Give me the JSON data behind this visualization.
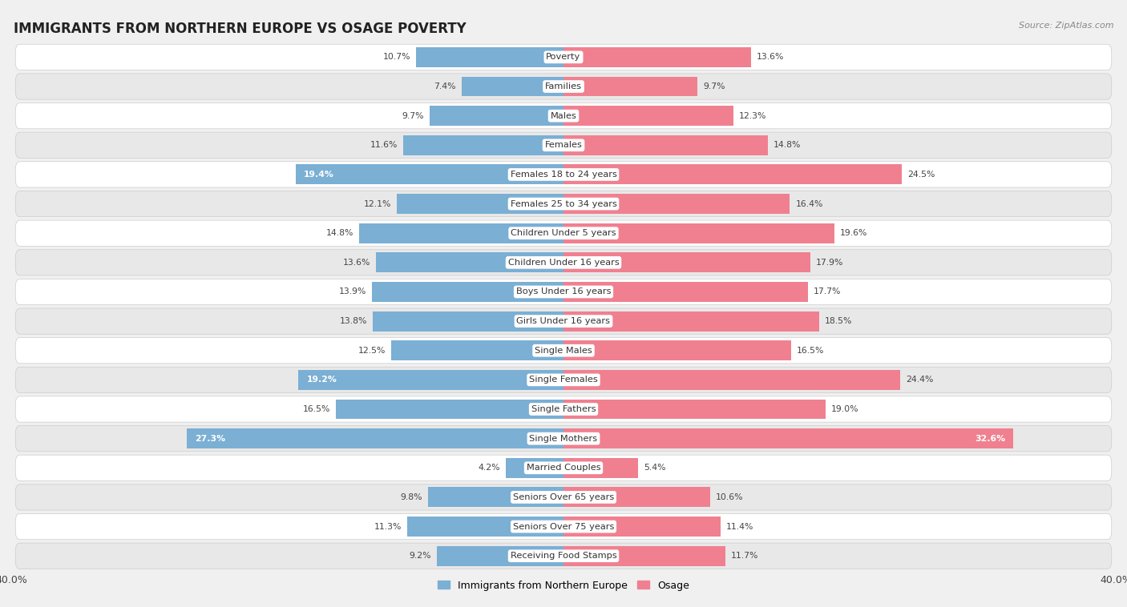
{
  "title": "IMMIGRANTS FROM NORTHERN EUROPE VS OSAGE POVERTY",
  "source": "Source: ZipAtlas.com",
  "categories": [
    "Poverty",
    "Families",
    "Males",
    "Females",
    "Females 18 to 24 years",
    "Females 25 to 34 years",
    "Children Under 5 years",
    "Children Under 16 years",
    "Boys Under 16 years",
    "Girls Under 16 years",
    "Single Males",
    "Single Females",
    "Single Fathers",
    "Single Mothers",
    "Married Couples",
    "Seniors Over 65 years",
    "Seniors Over 75 years",
    "Receiving Food Stamps"
  ],
  "left_values": [
    10.7,
    7.4,
    9.7,
    11.6,
    19.4,
    12.1,
    14.8,
    13.6,
    13.9,
    13.8,
    12.5,
    19.2,
    16.5,
    27.3,
    4.2,
    9.8,
    11.3,
    9.2
  ],
  "right_values": [
    13.6,
    9.7,
    12.3,
    14.8,
    24.5,
    16.4,
    19.6,
    17.9,
    17.7,
    18.5,
    16.5,
    24.4,
    19.0,
    32.6,
    5.4,
    10.6,
    11.4,
    11.7
  ],
  "left_color": "#7bafd4",
  "right_color": "#f08090",
  "left_label": "Immigrants from Northern Europe",
  "right_label": "Osage",
  "axis_limit": 40.0,
  "bg_color": "#f0f0f0",
  "row_bg_white": "#ffffff",
  "row_bg_gray": "#e8e8e8",
  "bar_height": 0.68,
  "title_fontsize": 12,
  "label_fontsize": 8.2,
  "value_fontsize": 7.8
}
